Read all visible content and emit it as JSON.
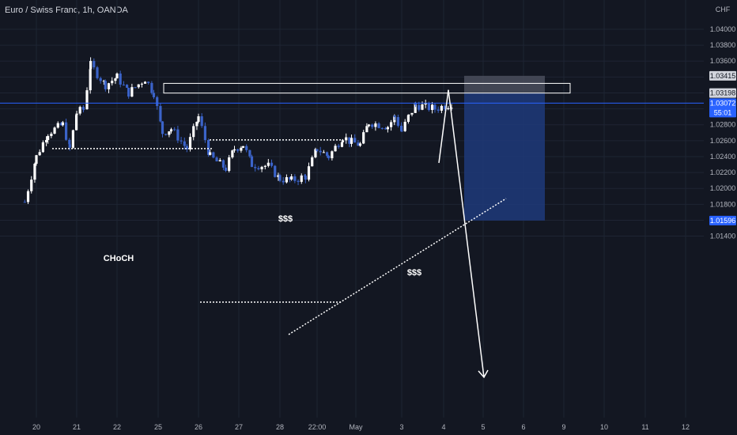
{
  "header": {
    "title": "Euro / Swiss Franc, 1h, OANDA",
    "currency": "CHF"
  },
  "colors": {
    "background": "#131722",
    "candle_up": "#ffffff",
    "candle_down": "#3b63c9",
    "grid": "#1e2433",
    "axis_text": "#b2b5be",
    "annotation": "#ffffff",
    "current_price_line": "#2962ff",
    "short_target_zone": "#1e3a7a",
    "short_stop_zone": "#4a4e5c"
  },
  "chart_data": {
    "type": "candlestick",
    "title": "Euro / Swiss Franc, 1h, OANDA",
    "y_axis": {
      "unit": "CHF",
      "ticks": [
        "1.04000",
        "1.03800",
        "1.03600",
        "1.03400",
        "1.03200",
        "1.03000",
        "1.02800",
        "1.02600",
        "1.02400",
        "1.02200",
        "1.02000",
        "1.01800",
        "1.01600",
        "1.01400"
      ],
      "range": [
        1.0122,
        1.0421
      ]
    },
    "x_axis": {
      "ticks": [
        "20",
        "21",
        "22",
        "25",
        "26",
        "27",
        "28",
        "22:00",
        "May",
        "3",
        "4",
        "5",
        "6",
        "9",
        "10",
        "11",
        "12"
      ]
    },
    "price_labels": [
      {
        "value": "1.03415",
        "style": "stop"
      },
      {
        "value": "1.03198",
        "style": "level"
      },
      {
        "value": "1.03072",
        "countdown": "55:01",
        "style": "current"
      },
      {
        "value": "1.01596",
        "style": "target"
      }
    ],
    "current_price": 1.03072,
    "resistance_zone": [
      1.03198,
      1.0332
    ],
    "short_position": {
      "entry": 1.03198,
      "stop": 1.03415,
      "target": 1.01596
    },
    "annotations": [
      {
        "text": "CHoCH",
        "kind": "break_of_structure",
        "level": 1.025
      },
      {
        "text": "$$$",
        "kind": "liquidity_above",
        "level": 1.0261
      },
      {
        "text": "$$$",
        "kind": "liquidity_trendline",
        "level": 1.0237
      }
    ],
    "price_path": [
      {
        "x": "20",
        "y": 1.0183
      },
      {
        "x": "20",
        "y": 1.024
      },
      {
        "x": "20",
        "y": 1.027
      },
      {
        "x": "21",
        "y": 1.028
      },
      {
        "x": "21",
        "y": 1.025
      },
      {
        "x": "21",
        "y": 1.0295
      },
      {
        "x": "21",
        "y": 1.03
      },
      {
        "x": "21",
        "y": 1.0355
      },
      {
        "x": "22",
        "y": 1.033
      },
      {
        "x": "22",
        "y": 1.034
      },
      {
        "x": "22",
        "y": 1.032
      },
      {
        "x": "25",
        "y": 1.0338
      },
      {
        "x": "25",
        "y": 1.032
      },
      {
        "x": "25",
        "y": 1.027
      },
      {
        "x": "25",
        "y": 1.0275
      },
      {
        "x": "26",
        "y": 1.025
      },
      {
        "x": "26",
        "y": 1.029
      },
      {
        "x": "26",
        "y": 1.024
      },
      {
        "x": "27",
        "y": 1.0225
      },
      {
        "x": "27",
        "y": 1.025
      },
      {
        "x": "27",
        "y": 1.0255
      },
      {
        "x": "27",
        "y": 1.023
      },
      {
        "x": "28",
        "y": 1.0228
      },
      {
        "x": "28",
        "y": 1.0212
      },
      {
        "x": "28",
        "y": 1.021
      },
      {
        "x": "22:00",
        "y": 1.0215
      },
      {
        "x": "22:00",
        "y": 1.025
      },
      {
        "x": "22:00",
        "y": 1.024
      },
      {
        "x": "May",
        "y": 1.0265
      },
      {
        "x": "May",
        "y": 1.0258
      },
      {
        "x": "May",
        "y": 1.0255
      },
      {
        "x": "May",
        "y": 1.0283
      },
      {
        "x": "3",
        "y": 1.0278
      },
      {
        "x": "3",
        "y": 1.029
      },
      {
        "x": "3",
        "y": 1.0272
      },
      {
        "x": "3",
        "y": 1.029
      },
      {
        "x": "3",
        "y": 1.0305
      },
      {
        "x": "4",
        "y": 1.03
      },
      {
        "x": "4",
        "y": 1.0307
      }
    ]
  }
}
